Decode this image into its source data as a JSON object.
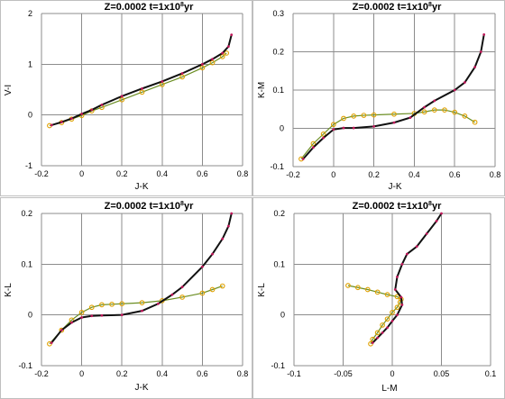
{
  "colors": {
    "black_line": "#111111",
    "red_markers": "#c0185a",
    "yellow_markers": "#e0a000",
    "yellow_line": "#6b8e23",
    "grid": "#8c8c8c"
  },
  "chart_data": [
    {
      "type": "line",
      "title": {
        "prefix": "Z=0.0002   t=1x10",
        "sup": "8",
        "suffix": "yr"
      },
      "xlabel": "J-K",
      "ylabel": "V-I",
      "xlim": [
        -0.2,
        0.8
      ],
      "ylim": [
        -1,
        2
      ],
      "xticks": [
        -0.2,
        0,
        0.2,
        0.4,
        0.6,
        0.8
      ],
      "xticklabels": [
        "-0.2",
        "0",
        "0.2",
        "0.4",
        "0.6",
        "0.8"
      ],
      "yticks": [
        -1,
        0,
        1,
        2
      ],
      "yticklabels": [
        "-1",
        "0",
        "1",
        "2"
      ],
      "series": [
        {
          "style": "black-line-red-markers",
          "points": [
            [
              -0.15,
              -0.2
            ],
            [
              -0.1,
              -0.14
            ],
            [
              -0.05,
              -0.07
            ],
            [
              0,
              0.02
            ],
            [
              0.05,
              0.1
            ],
            [
              0.1,
              0.2
            ],
            [
              0.2,
              0.37
            ],
            [
              0.3,
              0.52
            ],
            [
              0.4,
              0.66
            ],
            [
              0.5,
              0.82
            ],
            [
              0.6,
              1.0
            ],
            [
              0.65,
              1.1
            ],
            [
              0.7,
              1.22
            ],
            [
              0.73,
              1.35
            ],
            [
              0.745,
              1.58
            ]
          ]
        },
        {
          "style": "yellow-markers",
          "points": [
            [
              -0.16,
              -0.21
            ],
            [
              -0.1,
              -0.15
            ],
            [
              -0.05,
              -0.08
            ],
            [
              0,
              -0.01
            ],
            [
              0.05,
              0.08
            ],
            [
              0.1,
              0.15
            ],
            [
              0.2,
              0.3
            ],
            [
              0.3,
              0.45
            ],
            [
              0.4,
              0.6
            ],
            [
              0.5,
              0.75
            ],
            [
              0.6,
              0.93
            ],
            [
              0.65,
              1.03
            ],
            [
              0.7,
              1.15
            ],
            [
              0.72,
              1.22
            ]
          ]
        }
      ]
    },
    {
      "type": "line",
      "title": {
        "prefix": "Z=0.0002   t=1x10",
        "sup": "8",
        "suffix": "yr"
      },
      "xlabel": "J-K",
      "ylabel": "K-M",
      "xlim": [
        -0.2,
        0.8
      ],
      "ylim": [
        -0.1,
        0.3
      ],
      "xticks": [
        -0.2,
        0,
        0.2,
        0.4,
        0.6,
        0.8
      ],
      "xticklabels": [
        "-0.2",
        "0",
        "0.2",
        "0.4",
        "0.6",
        "0.8"
      ],
      "yticks": [
        -0.1,
        0,
        0.1,
        0.2,
        0.3
      ],
      "yticklabels": [
        "-0.1",
        "0",
        "0.1",
        "0.2",
        "0.3"
      ],
      "series": [
        {
          "style": "black-line-red-markers",
          "points": [
            [
              -0.15,
              -0.08
            ],
            [
              -0.1,
              -0.05
            ],
            [
              -0.05,
              -0.025
            ],
            [
              0,
              -0.003
            ],
            [
              0.05,
              0.001
            ],
            [
              0.1,
              0.001
            ],
            [
              0.2,
              0.005
            ],
            [
              0.3,
              0.015
            ],
            [
              0.38,
              0.028
            ],
            [
              0.45,
              0.055
            ],
            [
              0.5,
              0.072
            ],
            [
              0.6,
              0.1
            ],
            [
              0.65,
              0.12
            ],
            [
              0.7,
              0.16
            ],
            [
              0.73,
              0.2
            ],
            [
              0.745,
              0.245
            ]
          ]
        },
        {
          "style": "yellow-markers",
          "points": [
            [
              -0.16,
              -0.08
            ],
            [
              -0.1,
              -0.04
            ],
            [
              -0.05,
              -0.015
            ],
            [
              0,
              0.01
            ],
            [
              0.05,
              0.026
            ],
            [
              0.1,
              0.032
            ],
            [
              0.15,
              0.034
            ],
            [
              0.2,
              0.035
            ],
            [
              0.3,
              0.037
            ],
            [
              0.4,
              0.039
            ],
            [
              0.45,
              0.043
            ],
            [
              0.5,
              0.048
            ],
            [
              0.55,
              0.048
            ],
            [
              0.6,
              0.042
            ],
            [
              0.65,
              0.032
            ],
            [
              0.7,
              0.016
            ]
          ]
        }
      ]
    },
    {
      "type": "line",
      "title": {
        "prefix": "Z=0.0002   t=1x10",
        "sup": "8",
        "suffix": "yr"
      },
      "xlabel": "J-K",
      "ylabel": "K-L",
      "xlim": [
        -0.2,
        0.8
      ],
      "ylim": [
        -0.1,
        0.2
      ],
      "xticks": [
        -0.2,
        0,
        0.2,
        0.4,
        0.6,
        0.8
      ],
      "xticklabels": [
        "-0.2",
        "0",
        "0.2",
        "0.4",
        "0.6",
        "0.8"
      ],
      "yticks": [
        -0.1,
        0,
        0.1,
        0.2
      ],
      "yticklabels": [
        "-0.1",
        "0",
        "0.1",
        "0.2"
      ],
      "series": [
        {
          "style": "black-line-red-markers",
          "points": [
            [
              -0.15,
              -0.055
            ],
            [
              -0.1,
              -0.03
            ],
            [
              -0.05,
              -0.015
            ],
            [
              0,
              -0.005
            ],
            [
              0.05,
              -0.002
            ],
            [
              0.1,
              -0.001
            ],
            [
              0.2,
              0
            ],
            [
              0.3,
              0.008
            ],
            [
              0.38,
              0.022
            ],
            [
              0.45,
              0.04
            ],
            [
              0.5,
              0.055
            ],
            [
              0.6,
              0.095
            ],
            [
              0.65,
              0.12
            ],
            [
              0.7,
              0.15
            ],
            [
              0.73,
              0.175
            ],
            [
              0.745,
              0.2
            ]
          ]
        },
        {
          "style": "yellow-markers",
          "points": [
            [
              -0.16,
              -0.057
            ],
            [
              -0.1,
              -0.03
            ],
            [
              -0.05,
              -0.01
            ],
            [
              0,
              0.005
            ],
            [
              0.05,
              0.015
            ],
            [
              0.1,
              0.02
            ],
            [
              0.15,
              0.021
            ],
            [
              0.2,
              0.022
            ],
            [
              0.3,
              0.024
            ],
            [
              0.4,
              0.028
            ],
            [
              0.5,
              0.035
            ],
            [
              0.6,
              0.043
            ],
            [
              0.65,
              0.05
            ],
            [
              0.7,
              0.057
            ]
          ]
        }
      ]
    },
    {
      "type": "line",
      "title": {
        "prefix": "Z=0.0002   t=1x10",
        "sup": "8",
        "suffix": "yr"
      },
      "xlabel": "L-M",
      "ylabel": "K-L",
      "xlim": [
        -0.1,
        0.1
      ],
      "ylim": [
        -0.1,
        0.2
      ],
      "xticks": [
        -0.1,
        -0.05,
        0,
        0.05,
        0.1
      ],
      "xticklabels": [
        "-0.1",
        "-0.05",
        "0",
        "0.05",
        "0.1"
      ],
      "yticks": [
        -0.1,
        0,
        0.1,
        0.2
      ],
      "yticklabels": [
        "-0.1",
        "0",
        "0.1",
        "0.2"
      ],
      "series": [
        {
          "style": "black-line-red-markers",
          "points": [
            [
              -0.02,
              -0.055
            ],
            [
              -0.015,
              -0.045
            ],
            [
              -0.01,
              -0.035
            ],
            [
              -0.005,
              -0.025
            ],
            [
              0,
              -0.012
            ],
            [
              0.005,
              0
            ],
            [
              0.01,
              0.02
            ],
            [
              0.009,
              0.035
            ],
            [
              0.003,
              0.05
            ],
            [
              0.005,
              0.075
            ],
            [
              0.01,
              0.1
            ],
            [
              0.015,
              0.12
            ],
            [
              0.025,
              0.135
            ],
            [
              0.035,
              0.16
            ],
            [
              0.045,
              0.185
            ],
            [
              0.05,
              0.2
            ]
          ]
        },
        {
          "style": "yellow-markers",
          "points": [
            [
              -0.045,
              0.058
            ],
            [
              -0.035,
              0.054
            ],
            [
              -0.025,
              0.05
            ],
            [
              -0.015,
              0.045
            ],
            [
              -0.005,
              0.04
            ],
            [
              0.005,
              0.036
            ],
            [
              0.009,
              0.031
            ],
            [
              0.008,
              0.025
            ],
            [
              0.005,
              0.015
            ],
            [
              0,
              0.005
            ],
            [
              -0.005,
              -0.008
            ],
            [
              -0.01,
              -0.02
            ],
            [
              -0.015,
              -0.035
            ],
            [
              -0.02,
              -0.048
            ],
            [
              -0.022,
              -0.057
            ]
          ]
        }
      ]
    }
  ]
}
